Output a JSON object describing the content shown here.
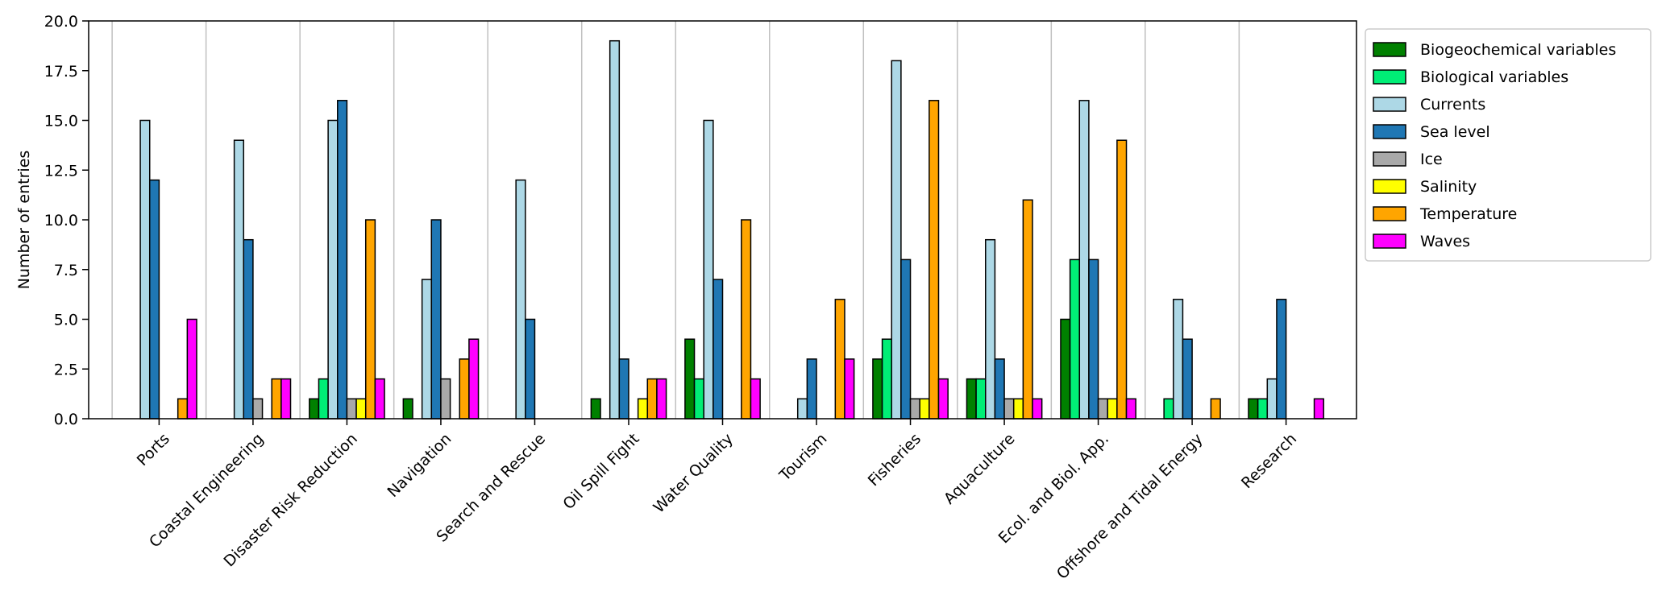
{
  "chart_data": {
    "type": "bar",
    "title": "",
    "xlabel": "",
    "ylabel": "Number of entries",
    "ylim": [
      0,
      20
    ],
    "yticks": [
      "0.0",
      "2.5",
      "5.0",
      "7.5",
      "10.0",
      "12.5",
      "15.0",
      "17.5",
      "20.0"
    ],
    "grid": "vertical lines at category boundaries",
    "legend_position": "upper-right outside plot",
    "categories": [
      "Ports",
      "Coastal Engineering",
      "Disaster Risk Reduction",
      "Navigation",
      "Search and Rescue",
      "Oil Spill Fight",
      "Water Quality",
      "Tourism",
      "Fisheries",
      "Aquaculture",
      "Ecol. and Biol. App.",
      "Offshore and Tidal Energy",
      "Research"
    ],
    "series": [
      {
        "name": "Biogeochemical variables",
        "color": "#008000",
        "values": [
          0,
          0,
          1,
          1,
          0,
          1,
          4,
          0,
          3,
          2,
          5,
          0,
          1
        ]
      },
      {
        "name": "Biological variables",
        "color": "#00ee76",
        "values": [
          0,
          0,
          2,
          0,
          0,
          0,
          2,
          0,
          4,
          2,
          8,
          1,
          1
        ]
      },
      {
        "name": "Currents",
        "color": "#add8e6",
        "values": [
          15,
          14,
          15,
          7,
          12,
          19,
          15,
          1,
          18,
          9,
          16,
          6,
          2
        ]
      },
      {
        "name": "Sea level",
        "color": "#1f77b4",
        "values": [
          12,
          9,
          16,
          10,
          5,
          3,
          7,
          3,
          8,
          3,
          8,
          4,
          6
        ]
      },
      {
        "name": "Ice",
        "color": "#a9a9a9",
        "values": [
          0,
          1,
          1,
          2,
          0,
          0,
          0,
          0,
          1,
          1,
          1,
          0,
          0
        ]
      },
      {
        "name": "Salinity",
        "color": "#ffff00",
        "values": [
          0,
          0,
          1,
          0,
          0,
          1,
          0,
          0,
          1,
          1,
          1,
          0,
          0
        ]
      },
      {
        "name": "Temperature",
        "color": "#ffa500",
        "values": [
          1,
          2,
          10,
          3,
          0,
          2,
          10,
          6,
          16,
          11,
          14,
          1,
          0
        ]
      },
      {
        "name": "Waves",
        "color": "#ff00ff",
        "values": [
          5,
          2,
          2,
          4,
          0,
          2,
          2,
          3,
          2,
          1,
          1,
          0,
          1
        ]
      }
    ]
  }
}
